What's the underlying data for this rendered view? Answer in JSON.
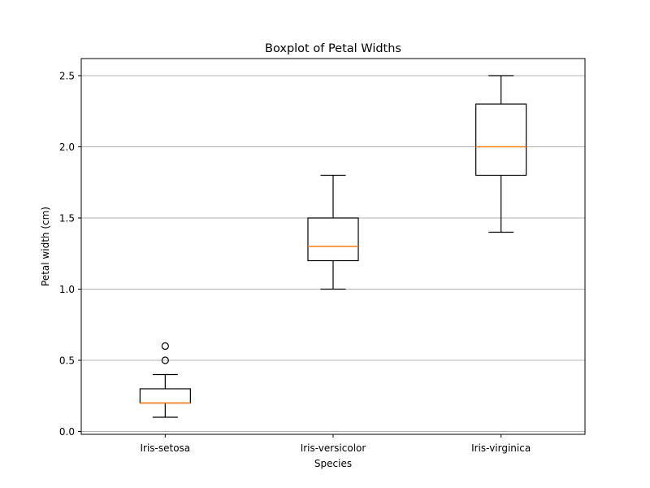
{
  "chart_data": {
    "type": "boxplot",
    "title": "Boxplot of Petal Widths",
    "xlabel": "Species",
    "ylabel": "Petal width (cm)",
    "categories": [
      "Iris-setosa",
      "Iris-versicolor",
      "Iris-virginica"
    ],
    "boxes": [
      {
        "label": "Iris-setosa",
        "whisker_low": 0.1,
        "q1": 0.2,
        "median": 0.2,
        "q3": 0.3,
        "whisker_high": 0.4,
        "outliers": [
          0.5,
          0.6
        ]
      },
      {
        "label": "Iris-versicolor",
        "whisker_low": 1.0,
        "q1": 1.2,
        "median": 1.3,
        "q3": 1.5,
        "whisker_high": 1.8,
        "outliers": []
      },
      {
        "label": "Iris-virginica",
        "whisker_low": 1.4,
        "q1": 1.8,
        "median": 2.0,
        "q3": 2.3,
        "whisker_high": 2.5,
        "outliers": []
      }
    ],
    "ylim": [
      -0.02,
      2.62
    ],
    "yticks": [
      0.0,
      0.5,
      1.0,
      1.5,
      2.0,
      2.5
    ],
    "ytick_labels": [
      "0.0",
      "0.5",
      "1.0",
      "1.5",
      "2.0",
      "2.5"
    ],
    "grid": "y-axis",
    "colors": {
      "box": "#000000",
      "median": "#ff7f0e",
      "grid": "#b0b0b0"
    }
  }
}
